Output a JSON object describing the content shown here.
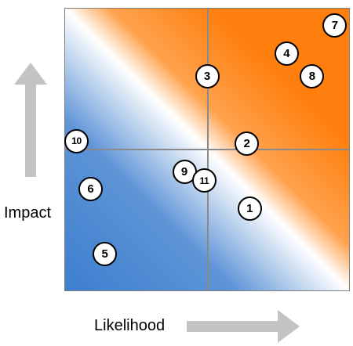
{
  "axes": {
    "y_label": "Impact",
    "x_label": "Likelihood"
  },
  "colors": {
    "high_risk": "#ff7f0e",
    "low_risk": "#3d7fcf",
    "gridline": "#8a8a8a",
    "arrow": "#c3c3c3"
  },
  "risks": [
    {
      "id": "1",
      "likelihood": 0.65,
      "impact": 0.29
    },
    {
      "id": "2",
      "likelihood": 0.64,
      "impact": 0.52
    },
    {
      "id": "3",
      "likelihood": 0.5,
      "impact": 0.76
    },
    {
      "id": "4",
      "likelihood": 0.78,
      "impact": 0.84
    },
    {
      "id": "5",
      "likelihood": 0.14,
      "impact": 0.13
    },
    {
      "id": "6",
      "likelihood": 0.09,
      "impact": 0.36
    },
    {
      "id": "7",
      "likelihood": 0.95,
      "impact": 0.94
    },
    {
      "id": "8",
      "likelihood": 0.87,
      "impact": 0.76
    },
    {
      "id": "9",
      "likelihood": 0.42,
      "impact": 0.42
    },
    {
      "id": "10",
      "likelihood": 0.04,
      "impact": 0.53
    },
    {
      "id": "11",
      "likelihood": 0.49,
      "impact": 0.39
    }
  ]
}
